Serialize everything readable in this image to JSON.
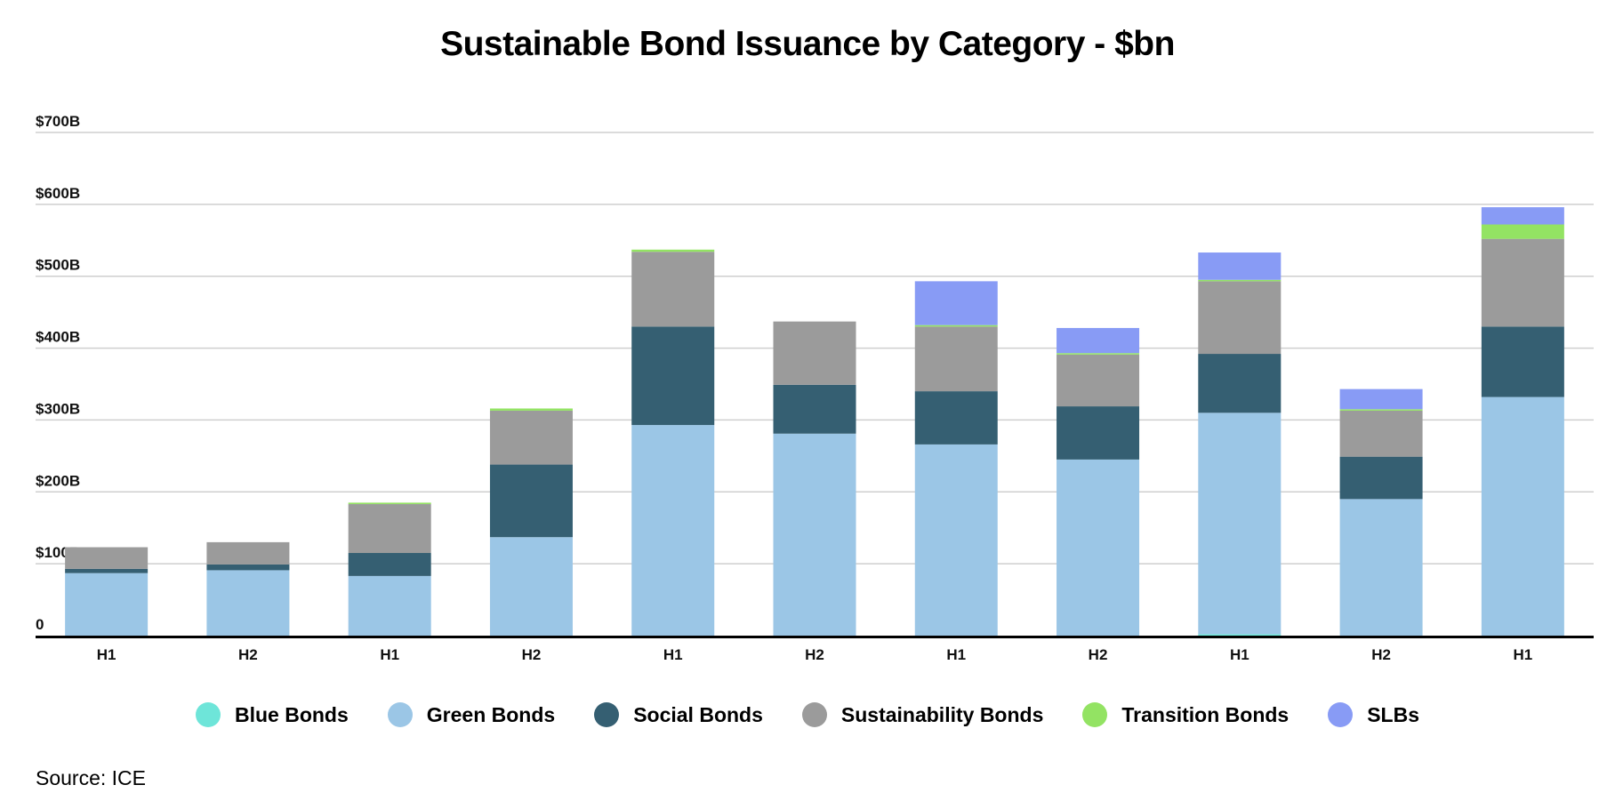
{
  "chart_data": {
    "type": "bar",
    "stacked": true,
    "title": "Sustainable Bond Issuance by Category - $bn",
    "categories": [
      "H1",
      "H2",
      "H1",
      "H2",
      "H1",
      "H2",
      "H1",
      "H2",
      "H1",
      "H2",
      "H1"
    ],
    "series": [
      {
        "name": "Blue Bonds",
        "color": "#6ee5d9",
        "values": [
          0,
          0,
          0,
          0,
          0,
          0,
          0,
          0,
          2,
          0,
          0
        ]
      },
      {
        "name": "Green Bonds",
        "color": "#9bc6e6",
        "values": [
          87,
          91,
          83,
          137,
          293,
          281,
          266,
          245,
          308,
          190,
          332
        ]
      },
      {
        "name": "Social Bonds",
        "color": "#355f72",
        "values": [
          6,
          8,
          32,
          101,
          137,
          68,
          74,
          74,
          82,
          59,
          98
        ]
      },
      {
        "name": "Sustainability Bonds",
        "color": "#9b9b9b",
        "values": [
          30,
          31,
          68,
          75,
          104,
          88,
          90,
          72,
          101,
          64,
          122
        ]
      },
      {
        "name": "Transition Bonds",
        "color": "#93e363",
        "values": [
          0,
          0,
          2,
          3,
          3,
          0,
          2,
          2,
          2,
          2,
          20
        ]
      },
      {
        "name": "SLBs",
        "color": "#889bf5",
        "values": [
          0,
          0,
          0,
          0,
          0,
          0,
          61,
          35,
          38,
          28,
          24
        ]
      }
    ],
    "yticks": [
      "0",
      "$100B",
      "$200B",
      "$300B",
      "$400B",
      "$500B",
      "$600B",
      "$700B"
    ],
    "ylim": [
      0,
      700
    ],
    "grid": true,
    "legend_position": "bottom"
  },
  "source": "Source: ICE"
}
